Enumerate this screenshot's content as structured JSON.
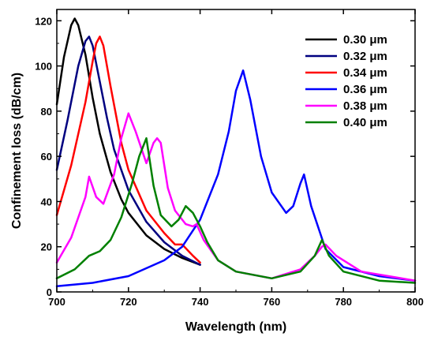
{
  "chart_data": {
    "type": "line",
    "xlabel": "Wavelength (nm)",
    "ylabel": "Confinement loss (dB/cm)",
    "xlim": [
      700,
      800
    ],
    "ylim": [
      0,
      125
    ],
    "xticks": [
      700,
      720,
      740,
      760,
      780,
      800
    ],
    "yticks": [
      0,
      20,
      40,
      60,
      80,
      100,
      120
    ],
    "grid": false,
    "legend_position": "top-right",
    "series": [
      {
        "name": "0.30 μm",
        "color": "#000000",
        "x": [
          700,
          702,
          704,
          705,
          706,
          708,
          710,
          712,
          715,
          718,
          720,
          725,
          730,
          735,
          740
        ],
        "y": [
          83,
          104,
          118,
          121,
          118,
          105,
          86,
          70,
          53,
          41,
          35,
          25,
          19,
          15,
          12
        ]
      },
      {
        "name": "0.32 μm",
        "color": "#000080",
        "x": [
          700,
          703,
          706,
          708,
          709,
          710,
          712,
          714,
          716,
          720,
          725,
          730,
          735,
          740
        ],
        "y": [
          54,
          76,
          100,
          111,
          113,
          109,
          93,
          77,
          63,
          45,
          31,
          22,
          16,
          12
        ]
      },
      {
        "name": "0.34 μm",
        "color": "#ff0000",
        "x": [
          700,
          704,
          708,
          710,
          711,
          712,
          713,
          715,
          718,
          720,
          725,
          730,
          733,
          735,
          738,
          740
        ],
        "y": [
          34,
          56,
          84,
          102,
          110,
          113,
          109,
          91,
          66,
          54,
          36,
          26,
          21,
          21,
          16,
          13
        ]
      },
      {
        "name": "0.36 μm",
        "color": "#0000ff",
        "x": [
          700,
          710,
          720,
          730,
          735,
          740,
          745,
          748,
          750,
          752,
          754,
          757,
          760,
          764,
          766,
          768,
          769,
          771,
          775,
          780,
          790,
          800
        ],
        "y": [
          2.5,
          4,
          7,
          14,
          20,
          32,
          52,
          71,
          89,
          98,
          85,
          60,
          44,
          35,
          38,
          48,
          52,
          38,
          19,
          11,
          7,
          5
        ]
      },
      {
        "name": "0.38 μm",
        "color": "#ff00ff",
        "x": [
          700,
          704,
          708,
          709,
          711,
          713,
          716,
          718,
          720,
          722,
          725,
          727,
          728,
          729,
          731,
          733,
          736,
          738,
          739,
          741,
          745,
          750,
          760,
          768,
          772,
          774,
          775,
          778,
          785,
          800
        ],
        "y": [
          13,
          24,
          42,
          51,
          42,
          39,
          52,
          68,
          79,
          71,
          57,
          66,
          68,
          66,
          46,
          36,
          30,
          29,
          30,
          23,
          14,
          9,
          6,
          10,
          16,
          20,
          21,
          16,
          9,
          5
        ]
      },
      {
        "name": "0.40 μm",
        "color": "#008000",
        "x": [
          700,
          705,
          709,
          712,
          715,
          718,
          721,
          723,
          725,
          727,
          729,
          732,
          734,
          736,
          738,
          740,
          742,
          745,
          750,
          760,
          768,
          772,
          774,
          776,
          780,
          790,
          800
        ],
        "y": [
          6,
          10,
          16,
          18,
          23,
          33,
          48,
          60,
          68,
          47,
          34,
          29,
          32,
          38,
          35,
          29,
          22,
          14,
          9,
          6,
          9,
          16,
          23,
          16,
          9,
          5,
          4
        ]
      }
    ]
  }
}
